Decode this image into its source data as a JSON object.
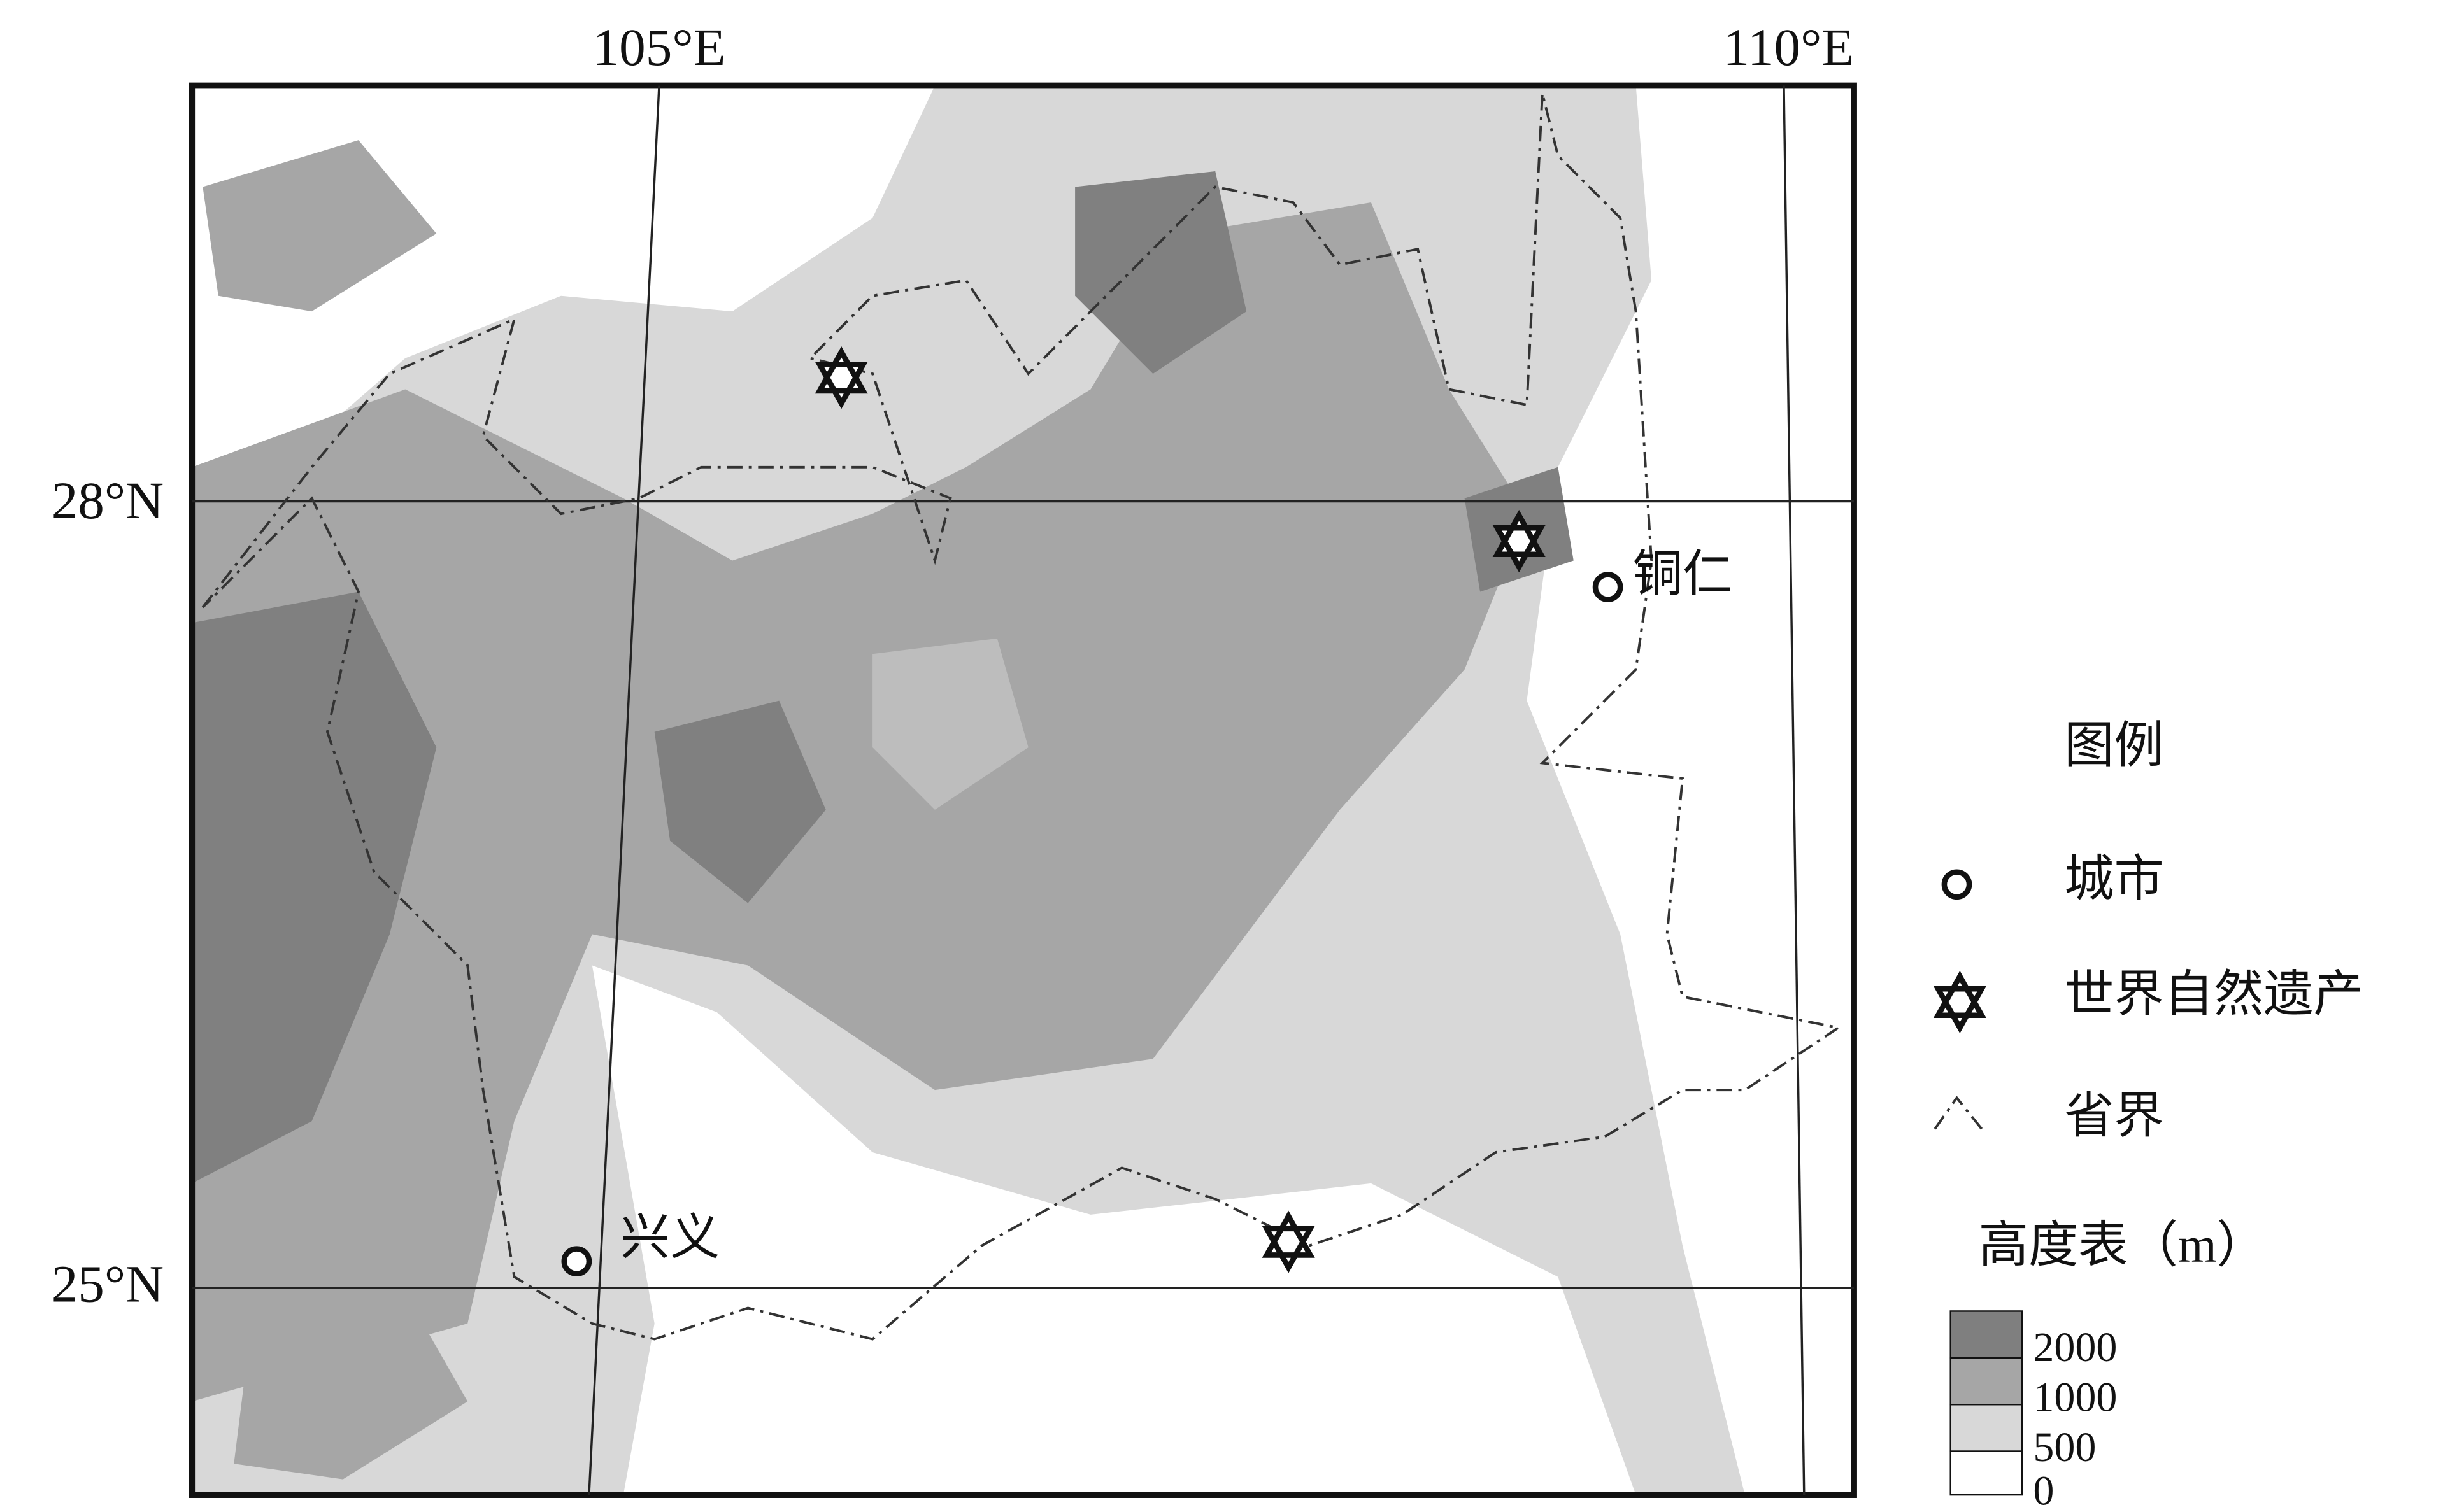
{
  "map": {
    "longitude_labels": [
      "105°E",
      "110°E"
    ],
    "latitude_labels": [
      "28°N",
      "25°N"
    ],
    "cities": [
      "铜仁",
      "兴义"
    ],
    "legend": {
      "title": "图例",
      "items": [
        "城市",
        "世界自然遗产",
        "省界"
      ],
      "elevation_title": "高度表（m）",
      "elevation_scale": [
        2000,
        1000,
        500,
        0
      ]
    }
  }
}
